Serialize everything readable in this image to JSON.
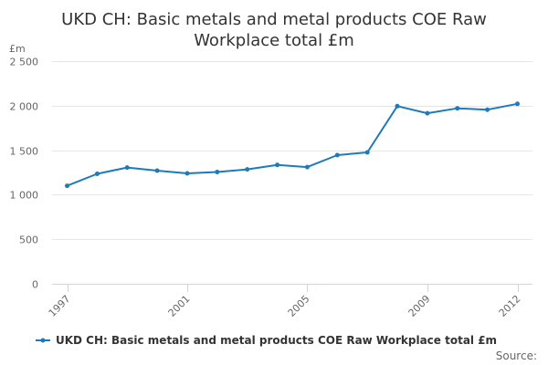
{
  "chart_data": {
    "type": "line",
    "title": "UKD CH: Basic metals and metal products COE Raw Workplace total £m",
    "title_lines": [
      "UKD CH: Basic metals and metal products COE Raw",
      "Workplace total £m"
    ],
    "ylabel": "£m",
    "xlabel": "",
    "x": [
      1997,
      1998,
      1999,
      2000,
      2001,
      2002,
      2003,
      2004,
      2005,
      2006,
      2007,
      2008,
      2009,
      2010,
      2011,
      2012
    ],
    "x_tick_labels": [
      "1997",
      "2001",
      "2005",
      "2009",
      "2012"
    ],
    "y_ticks": [
      0,
      500,
      1000,
      1500,
      2000,
      2500
    ],
    "y_tick_labels": [
      "0",
      "500",
      "1 000",
      "1 500",
      "2 000",
      "2 500"
    ],
    "ylim": [
      0,
      2500
    ],
    "grid": true,
    "legend_position": "bottom",
    "series": [
      {
        "name": "UKD CH: Basic metals and metal products COE Raw Workplace total £m",
        "color": "#1f7ab8",
        "values": [
          1100,
          1235,
          1305,
          1270,
          1240,
          1255,
          1285,
          1335,
          1310,
          1445,
          1475,
          1995,
          1915,
          1970,
          1955,
          2020
        ]
      }
    ],
    "credits": "Source:"
  }
}
